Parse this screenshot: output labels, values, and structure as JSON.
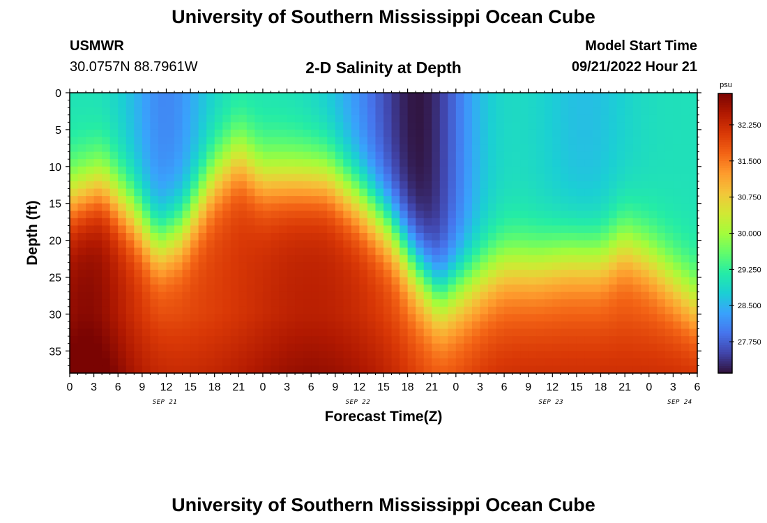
{
  "header": {
    "title": "University of Southern Mississippi Ocean Cube",
    "station": "USMWR",
    "coords": "30.0757N  88.7961W",
    "subtitle": "2-D Salinity at Depth",
    "model_label": "Model Start Time",
    "model_time": "09/21/2022 Hour 21"
  },
  "footer": {
    "title": "University of Southern Mississippi Ocean Cube"
  },
  "chart_data": {
    "type": "heatmap",
    "title": "2-D Salinity at Depth",
    "xlabel": "Forecast Time(Z)",
    "ylabel": "Depth (ft)",
    "colorbar_unit": "psu",
    "x_ticks": [
      "0",
      "3",
      "6",
      "9",
      "12",
      "15",
      "18",
      "21",
      "0",
      "3",
      "6",
      "9",
      "12",
      "15",
      "18",
      "21",
      "0",
      "3",
      "6",
      "9",
      "12",
      "15",
      "18",
      "21",
      "0",
      "3",
      "6"
    ],
    "x_day_labels": [
      {
        "label": "SEP 21",
        "hour": 12
      },
      {
        "label": "SEP 22",
        "hour": 36
      },
      {
        "label": "SEP 23",
        "hour": 60
      },
      {
        "label": "SEP 24",
        "hour": 76
      }
    ],
    "x_range_hours": [
      0,
      78
    ],
    "y_ticks": [
      0,
      5,
      10,
      15,
      20,
      25,
      30,
      35
    ],
    "y_range_ft": [
      0,
      38
    ],
    "y_inverted": true,
    "colorbar_ticks": [
      "32.250",
      "31.500",
      "30.750",
      "30.000",
      "29.250",
      "28.500",
      "27.750"
    ],
    "colorbar_values": [
      32.25,
      31.5,
      30.75,
      30.0,
      29.25,
      28.5,
      27.75
    ],
    "color_range": [
      27.1,
      32.9
    ],
    "colormap": [
      "#30123b",
      "#4145ab",
      "#4675ed",
      "#39a2fc",
      "#1bcfd4",
      "#24eca6",
      "#61fc6c",
      "#a4fc3b",
      "#d1e834",
      "#f3c63a",
      "#fe9b2d",
      "#f36315",
      "#d93806",
      "#b11901",
      "#7a0402"
    ],
    "surface_fresh_layer_bottom_ft": [
      {
        "hour": 0,
        "depth": 11
      },
      {
        "hour": 4,
        "depth": 9
      },
      {
        "hour": 8,
        "depth": 13
      },
      {
        "hour": 11,
        "depth": 17
      },
      {
        "hour": 14,
        "depth": 15
      },
      {
        "hour": 18,
        "depth": 8
      },
      {
        "hour": 21,
        "depth": 5
      },
      {
        "hour": 24,
        "depth": 8
      },
      {
        "hour": 28,
        "depth": 8
      },
      {
        "hour": 32,
        "depth": 8
      },
      {
        "hour": 36,
        "depth": 11
      },
      {
        "hour": 40,
        "depth": 15
      },
      {
        "hour": 43,
        "depth": 20
      },
      {
        "hour": 46,
        "depth": 24
      },
      {
        "hour": 50,
        "depth": 22
      },
      {
        "hour": 54,
        "depth": 20
      },
      {
        "hour": 58,
        "depth": 20
      },
      {
        "hour": 62,
        "depth": 19
      },
      {
        "hour": 66,
        "depth": 19
      },
      {
        "hour": 69,
        "depth": 17
      },
      {
        "hour": 72,
        "depth": 19
      },
      {
        "hour": 75,
        "depth": 22
      },
      {
        "hour": 78,
        "depth": 25
      }
    ]
  }
}
